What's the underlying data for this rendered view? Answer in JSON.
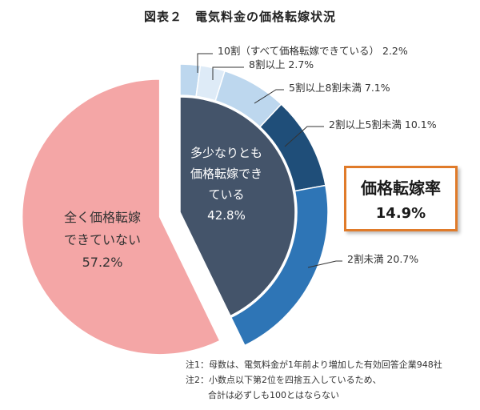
{
  "title": "図表２　電気料金の価格転嫁状況",
  "chart_data": {
    "type": "pie",
    "outer_ring": [
      {
        "label": "10割（すべて価格転嫁できている）",
        "value": 2.2,
        "display": "10割（すべて価格転嫁できている） 2.2%",
        "color": "#bdd7ee"
      },
      {
        "label": "8割以上",
        "value": 2.7,
        "display": "8割以上 2.7%",
        "color": "#deebf7"
      },
      {
        "label": "5割以上8割未満",
        "value": 7.1,
        "display": "5割以上8割未満 7.1%",
        "color": "#bdd7ee"
      },
      {
        "label": "2割以上5割未満",
        "value": 10.1,
        "display": "2割以上5割未満 10.1%",
        "color": "#1f4e79"
      },
      {
        "label": "2割未満",
        "value": 20.7,
        "display": "2割未満 20.7%",
        "color": "#2e75b6"
      }
    ],
    "inner": [
      {
        "label_lines": [
          "多少なりとも",
          "価格転嫁でき",
          "ている"
        ],
        "value": 42.8,
        "display": "42.8%",
        "color": "#44546a"
      },
      {
        "label_lines": [
          "全く価格転嫁",
          "できていない"
        ],
        "value": 57.2,
        "display": "57.2%",
        "color": "#f4a6a6"
      }
    ]
  },
  "rate_box": {
    "label": "価格転嫁率",
    "value": "14.9%"
  },
  "notes": [
    "注1：母数は、電気料金が1年前より増加した有効回答企業948社",
    "注2：小数点以下第2位を四捨五入しているため、",
    "合計は必ずしも100とはならない"
  ]
}
